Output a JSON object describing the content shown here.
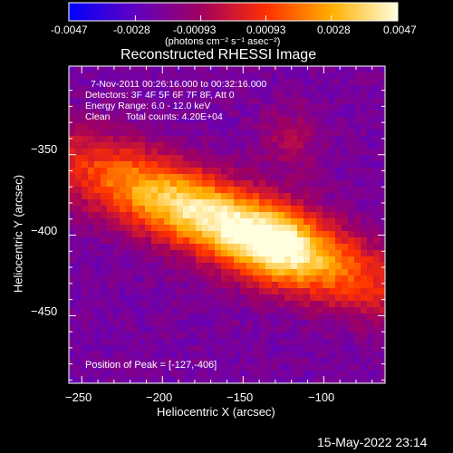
{
  "colorbar": {
    "tick_labels": [
      "-0.0047",
      "-0.0028",
      "-0.00093",
      "0.00093",
      "0.0028",
      "0.0047"
    ],
    "range": [
      -0.0047,
      0.0047
    ],
    "unit_label": "(photons cm⁻² s⁻¹ asec⁻²)",
    "colors": [
      "#0000ff",
      "#6000c0",
      "#a00060",
      "#ff3000",
      "#ffb000",
      "#ffffe0"
    ]
  },
  "chart_data": {
    "type": "heatmap",
    "title": "Reconstructed RHESSI Image",
    "xlabel": "Heliocentric X (arcsec)",
    "ylabel": "Heliocentric Y (arcsec)",
    "xlim": [
      -258,
      -62
    ],
    "ylim": [
      -492,
      -295
    ],
    "x_ticks": [
      -250,
      -200,
      -150,
      -100
    ],
    "y_ticks": [
      -350,
      -400,
      -450
    ],
    "x_tick_labels": [
      "−250",
      "−200",
      "−150",
      "−100"
    ],
    "y_tick_labels": [
      "−350",
      "−400",
      "−450"
    ],
    "info_lines": [
      "7-Nov-2011 00:26:16.000 to 00:32:16.000",
      "Detectors: 3F 4F 5F 6F 7F 8F, Att 0",
      "Energy Range: 6.0 - 12.0 keV",
      "Clean      Total counts: 4.20E+04"
    ],
    "peak_label": "Position of Peak = [-127,-406]",
    "peak": [
      -127,
      -406
    ]
  },
  "footer": {
    "timestamp": "15-May-2022 23:14"
  }
}
